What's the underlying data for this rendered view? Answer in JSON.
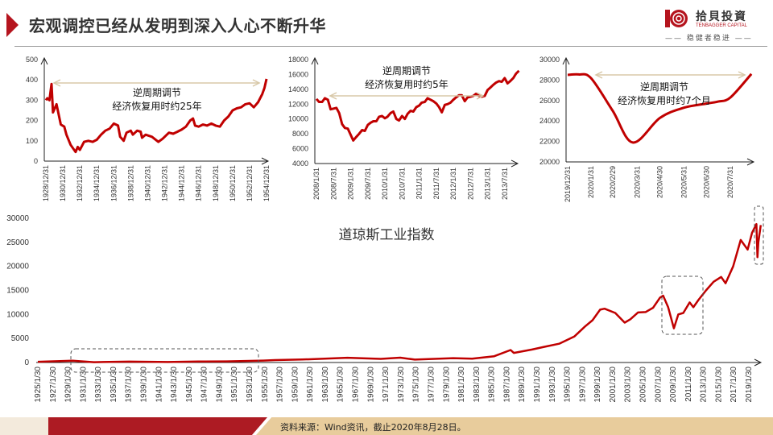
{
  "header": {
    "title": "宏观调控已经从发明到深入人心不断升华"
  },
  "logo": {
    "name_cn": "拾貝投資",
    "name_en": "TENBAGGER CAPITAL",
    "slogan": "—— 稳健者稳进 ——"
  },
  "footer": {
    "source": "资料来源：Wind资讯，截止2020年8月28日。"
  },
  "colors": {
    "accent": "#b5141e",
    "line": "#c00000",
    "arrow": "#d8c8a8",
    "footer_beige": "#e8cc9c"
  },
  "chart_data": [
    {
      "type": "line",
      "annotation": [
        "逆周期调节",
        "经济恢复用时约25年"
      ],
      "ylim": [
        0,
        500
      ],
      "yticks": [
        "0",
        "100",
        "200",
        "300",
        "400",
        "500"
      ],
      "xticks": [
        "1928/12/31",
        "1930/12/31",
        "1932/12/31",
        "1934/12/31",
        "1936/12/31",
        "1938/12/31",
        "1940/12/31",
        "1942/12/31",
        "1944/12/31",
        "1946/12/31",
        "1948/12/31",
        "1950/12/31",
        "1952/12/31",
        "1954/12/31"
      ],
      "x": [
        "1928/12/31",
        "1929/3/1",
        "1929/6/1",
        "1929/9/1",
        "1929/11/1",
        "1930/4/1",
        "1930/10/1",
        "1931/3/1",
        "1931/6/1",
        "1931/12/1",
        "1932/7/1",
        "1932/10/1",
        "1933/1/1",
        "1933/7/1",
        "1934/1/1",
        "1934/7/1",
        "1935/1/1",
        "1935/7/1",
        "1936/1/1",
        "1936/7/1",
        "1937/1/1",
        "1937/4/1",
        "1937/7/1",
        "1937/10/1",
        "1938/3/1",
        "1938/7/1",
        "1939/1/1",
        "1939/4/1",
        "1939/10/1",
        "1940/3/1",
        "1940/5/1",
        "1940/10/1",
        "1941/7/1",
        "1942/4/1",
        "1942/10/1",
        "1943/7/1",
        "1944/1/1",
        "1944/7/1",
        "1945/1/1",
        "1945/7/1",
        "1946/1/1",
        "1946/5/1",
        "1946/8/1",
        "1947/1/1",
        "1947/7/1",
        "1948/1/1",
        "1948/7/1",
        "1949/1/1",
        "1949/7/1",
        "1950/1/1",
        "1950/7/1",
        "1951/1/1",
        "1951/7/1",
        "1952/1/1",
        "1952/7/1",
        "1953/1/1",
        "1953/7/1",
        "1954/1/1",
        "1954/7/1",
        "1954/10/1",
        "1954/12/31"
      ],
      "values": [
        300,
        310,
        300,
        380,
        240,
        280,
        180,
        170,
        130,
        80,
        45,
        70,
        55,
        95,
        100,
        95,
        105,
        130,
        150,
        160,
        185,
        180,
        175,
        120,
        100,
        140,
        150,
        130,
        150,
        145,
        115,
        130,
        120,
        95,
        110,
        140,
        135,
        145,
        155,
        170,
        200,
        210,
        175,
        170,
        180,
        175,
        185,
        175,
        170,
        200,
        220,
        250,
        260,
        265,
        280,
        285,
        265,
        290,
        330,
        360,
        405
      ]
    },
    {
      "type": "line",
      "annotation": [
        "逆周期调节",
        "经济恢复用时约5年"
      ],
      "ylim": [
        4000,
        18000
      ],
      "yticks": [
        "4000",
        "6000",
        "8000",
        "10000",
        "12000",
        "14000",
        "16000",
        "18000"
      ],
      "xticks": [
        "2008/1/31",
        "2008/7/31",
        "2009/1/31",
        "2009/7/31",
        "2010/1/31",
        "2010/7/31",
        "2011/1/31",
        "2011/7/31",
        "2012/1/31",
        "2012/7/31",
        "2013/1/31",
        "2013/7/31"
      ],
      "x": [
        "2008/1/31",
        "2008/2/28",
        "2008/3/31",
        "2008/4/30",
        "2008/5/31",
        "2008/6/30",
        "2008/7/31",
        "2008/8/31",
        "2008/9/30",
        "2008/10/31",
        "2008/11/30",
        "2008/12/31",
        "2009/2/28",
        "2009/3/31",
        "2009/4/30",
        "2009/5/31",
        "2009/6/30",
        "2009/7/31",
        "2009/8/31",
        "2009/9/30",
        "2009/10/31",
        "2009/11/30",
        "2009/12/31",
        "2010/1/31",
        "2010/2/28",
        "2010/3/31",
        "2010/4/30",
        "2010/5/31",
        "2010/6/30",
        "2010/7/31",
        "2010/8/31",
        "2010/9/30",
        "2010/10/31",
        "2010/11/30",
        "2010/12/31",
        "2011/1/31",
        "2011/2/28",
        "2011/3/31",
        "2011/4/30",
        "2011/5/31",
        "2011/6/30",
        "2011/7/31",
        "2011/8/31",
        "2011/9/30",
        "2011/10/31",
        "2011/11/30",
        "2011/12/31",
        "2012/1/31",
        "2012/2/29",
        "2012/3/31",
        "2012/4/30",
        "2012/5/31",
        "2012/6/30",
        "2012/7/31",
        "2012/8/31",
        "2012/9/30",
        "2012/10/31",
        "2012/11/30",
        "2012/12/31",
        "2013/1/31",
        "2013/2/28",
        "2013/3/31",
        "2013/4/30",
        "2013/5/31",
        "2013/6/30",
        "2013/7/31",
        "2013/8/31",
        "2013/9/30",
        "2013/10/31",
        "2013/11/30",
        "2013/12/31"
      ],
      "values": [
        12700,
        12300,
        12300,
        12800,
        12600,
        11300,
        11400,
        11500,
        10800,
        9300,
        8800,
        8700,
        7100,
        7600,
        8000,
        8500,
        8400,
        9200,
        9500,
        9700,
        9700,
        10300,
        10400,
        10100,
        10300,
        10800,
        11000,
        10000,
        9800,
        10400,
        10000,
        10700,
        11100,
        11000,
        11600,
        11800,
        12200,
        12300,
        12800,
        12600,
        12400,
        12100,
        11600,
        10900,
        11900,
        12000,
        12200,
        12600,
        12900,
        13200,
        13200,
        12400,
        12900,
        13000,
        13100,
        13400,
        13100,
        13000,
        13100,
        13900,
        14200,
        14600,
        14900,
        15100,
        15000,
        15500,
        14800,
        15100,
        15500,
        16100,
        16500
      ]
    },
    {
      "type": "line",
      "annotation": [
        "逆周期调节",
        "经济恢复用时约7个月"
      ],
      "ylim": [
        20000,
        30000
      ],
      "yticks": [
        "20000",
        "22000",
        "24000",
        "26000",
        "28000",
        "30000"
      ],
      "xticks": [
        "2019/12/31",
        "2020/1/31",
        "2020/2/29",
        "2020/3/31",
        "2020/4/30",
        "2020/5/31",
        "2020/6/30",
        "2020/7/31"
      ],
      "x": [
        "2019/12/31",
        "2020/1/15",
        "2020/1/31",
        "2020/2/29",
        "2020/3/25",
        "2020/4/30",
        "2020/5/31",
        "2020/6/30",
        "2020/7/15",
        "2020/7/31",
        "2020/8/28"
      ],
      "values": [
        28500,
        28550,
        28200,
        25000,
        21900,
        24300,
        25300,
        25700,
        25900,
        26300,
        28600
      ]
    },
    {
      "type": "line",
      "title": "道琼斯工业指数",
      "ylim": [
        0,
        30000
      ],
      "yticks": [
        "0",
        "5000",
        "10000",
        "15000",
        "20000",
        "25000",
        "30000"
      ],
      "xticks": [
        "1925/1/30",
        "1927/1/30",
        "1929/1/30",
        "1931/1/30",
        "1933/1/30",
        "1935/1/30",
        "1937/1/30",
        "1939/1/30",
        "1941/1/30",
        "1943/1/30",
        "1945/1/30",
        "1947/1/30",
        "1949/1/30",
        "1951/1/30",
        "1953/1/30",
        "1955/1/30",
        "1957/1/30",
        "1959/1/30",
        "1961/1/30",
        "1963/1/30",
        "1965/1/30",
        "1967/1/30",
        "1969/1/30",
        "1971/1/30",
        "1973/1/30",
        "1975/1/30",
        "1977/1/30",
        "1979/1/30",
        "1981/1/30",
        "1983/1/30",
        "1985/1/30",
        "1987/1/30",
        "1989/1/30",
        "1991/1/30",
        "1993/1/30",
        "1995/1/30",
        "1997/1/30",
        "1999/1/30",
        "2001/1/30",
        "2003/1/30",
        "2005/1/30",
        "2007/1/30",
        "2009/1/30",
        "2011/1/30",
        "2013/1/30",
        "2015/1/30",
        "2017/1/30",
        "2019/1/30"
      ],
      "x": [
        "1925/1/30",
        "1929/9/1",
        "1932/7/1",
        "1937/3/1",
        "1942/4/1",
        "1946/5/1",
        "1950/1/1",
        "1954/12/1",
        "1956/6/1",
        "1960/1/1",
        "1966/1/1",
        "1970/6/1",
        "1973/1/1",
        "1974/12/1",
        "1980/1/1",
        "1982/7/1",
        "1985/6/1",
        "1987/8/1",
        "1988/1/1",
        "1990/6/1",
        "1992/1/1",
        "1994/1/1",
        "1996/1/1",
        "1997/6/1",
        "1998/6/1",
        "1999/6/1",
        "2000/1/1",
        "2001/6/1",
        "2002/9/1",
        "2003/6/1",
        "2004/6/1",
        "2005/6/1",
        "2006/6/1",
        "2007/5/1",
        "2007/10/1",
        "2008/6/1",
        "2009/3/1",
        "2009/10/1",
        "2010/6/1",
        "2011/4/1",
        "2011/10/1",
        "2012/6/1",
        "2013/6/1",
        "2014/6/1",
        "2015/6/1",
        "2016/1/1",
        "2017/1/1",
        "2018/1/1",
        "2018/12/1",
        "2019/7/1",
        "2020/2/1",
        "2020/3/20",
        "2020/5/1",
        "2020/8/28"
      ],
      "values": [
        150,
        380,
        60,
        190,
        100,
        200,
        230,
        400,
        500,
        620,
        990,
        750,
        1000,
        600,
        900,
        800,
        1300,
        2600,
        2000,
        2700,
        3250,
        3900,
        5400,
        7500,
        8800,
        11000,
        11200,
        10300,
        8300,
        9000,
        10400,
        10500,
        11400,
        13500,
        13900,
        11500,
        7100,
        10000,
        10300,
        12500,
        11500,
        13000,
        15000,
        16800,
        17800,
        16500,
        20000,
        25500,
        23500,
        27000,
        28800,
        21900,
        25000,
        28600
      ]
    }
  ]
}
